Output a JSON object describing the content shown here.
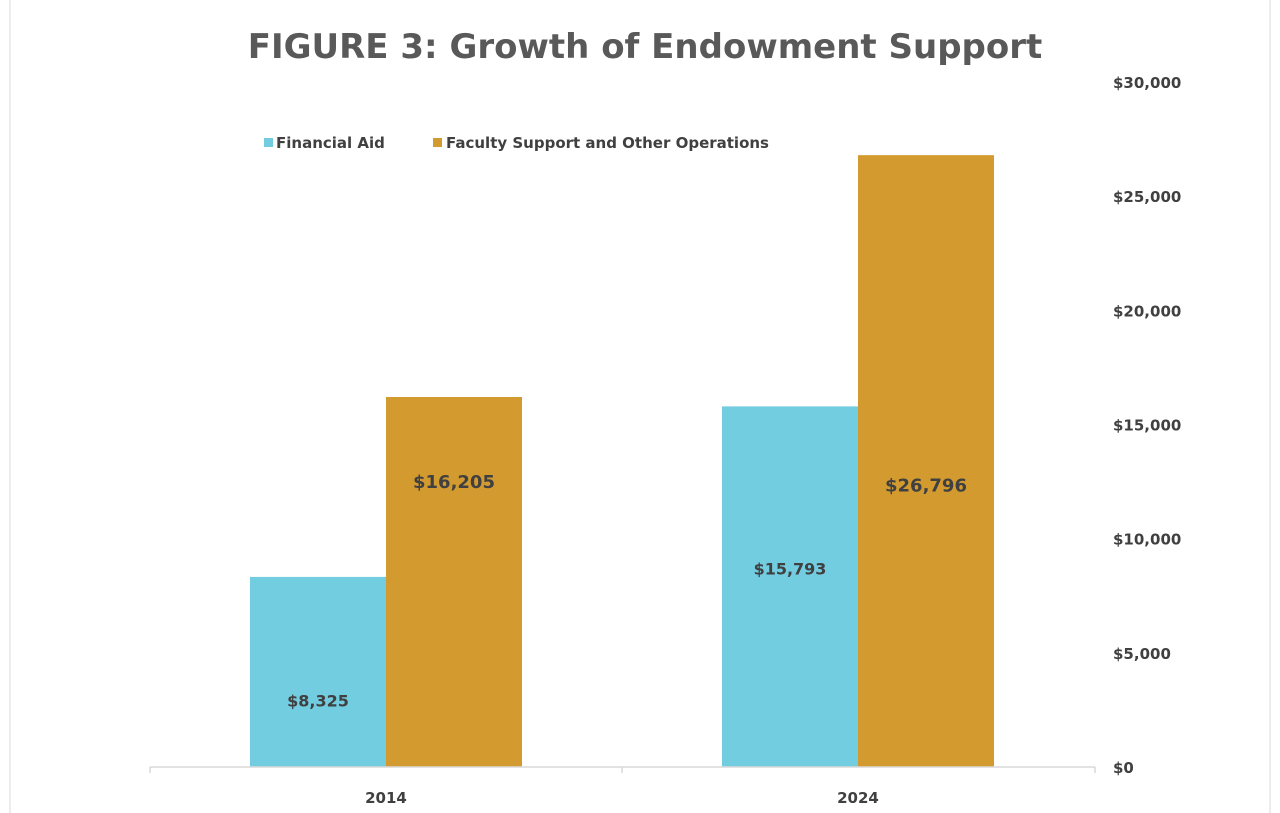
{
  "chart_data": {
    "type": "bar",
    "title": "FIGURE 3: Growth of Endowment Support",
    "categories": [
      "2014",
      "2024"
    ],
    "series": [
      {
        "name": "Financial Aid",
        "values": [
          8325,
          15793
        ],
        "labels": [
          "$8,325",
          "$15,793"
        ],
        "color": "#72CDE1"
      },
      {
        "name": "Faculty Support and Other Operations",
        "values": [
          16205,
          26796
        ],
        "labels": [
          "$16,205",
          "$26,796"
        ],
        "color": "#D39B2F"
      }
    ],
    "y_axis": {
      "position": "right",
      "min": 0,
      "max": 30000,
      "ticks": [
        0,
        5000,
        10000,
        15000,
        20000,
        25000,
        30000
      ],
      "tick_labels": [
        "$0",
        "$5,000",
        "$10,000",
        "$15,000",
        "$20,000",
        "$25,000",
        "$30,000"
      ]
    },
    "xlabel": "",
    "ylabel": "",
    "grid": false,
    "legend": "top-left",
    "colors": {
      "axis": "#D9D9D9",
      "text": "#404040",
      "title": "#595959",
      "frame": "#D9D9D9"
    }
  }
}
